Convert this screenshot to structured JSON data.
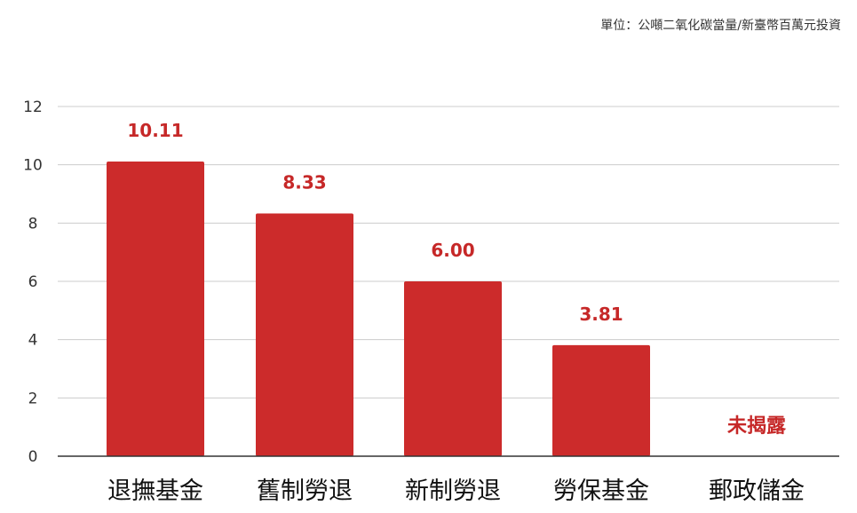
{
  "unit_note": "單位：公噸二氧化碳當量/新臺幣百萬元投資",
  "colors": {
    "bar": "#cc2b2b",
    "label": "#c62828",
    "grid": "#cccccc",
    "axis": "#333333"
  },
  "chart_data": {
    "type": "bar",
    "categories": [
      "退撫基金",
      "舊制勞退",
      "新制勞退",
      "勞保基金",
      "郵政儲金"
    ],
    "values": [
      10.11,
      8.33,
      6.0,
      3.81,
      null
    ],
    "data_labels": [
      "10.11",
      "8.33",
      "6.00",
      "3.81",
      "未揭露"
    ],
    "yticks": [
      "0",
      "2",
      "4",
      "6",
      "8",
      "10",
      "12"
    ],
    "ylim": [
      0,
      12
    ],
    "grid": true,
    "title": "",
    "xlabel": "",
    "ylabel": ""
  }
}
